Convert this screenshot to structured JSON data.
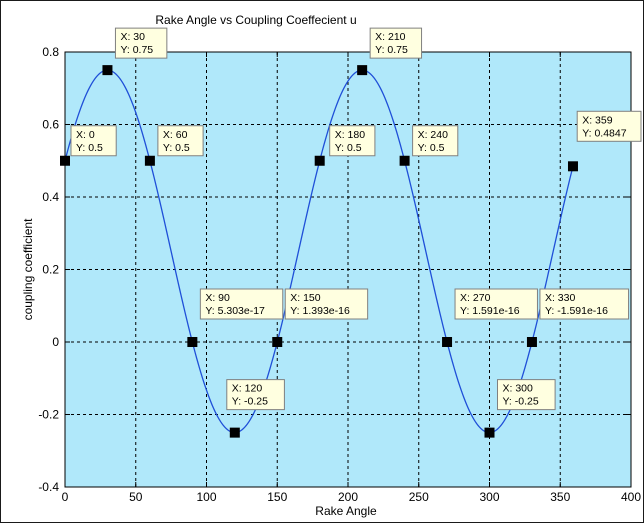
{
  "chart_data": {
    "type": "line",
    "title": "Rake Angle vs Coupling Coeffecient u",
    "xlabel": "Rake Angle",
    "ylabel": "coupling coefficient",
    "xlim": [
      0,
      400
    ],
    "ylim": [
      -0.4,
      0.8
    ],
    "xticks": [
      0,
      50,
      100,
      150,
      200,
      250,
      300,
      350,
      400
    ],
    "yticks": [
      -0.4,
      -0.2,
      0,
      0.2,
      0.4,
      0.6,
      0.8
    ],
    "xtick_labels": [
      "0",
      "50",
      "100",
      "150",
      "200",
      "250",
      "300",
      "350",
      "400"
    ],
    "ytick_labels": [
      "-0.4",
      "-0.2",
      "0",
      "0.2",
      "0.4",
      "0.6",
      "0.8"
    ],
    "grid": true,
    "legend": "none",
    "plot_background": "#b0e8fa",
    "line_color": "#1f4fd8",
    "curve": {
      "x_start": 0,
      "x_end": 359,
      "function": "0.25 + 0.5*cos(2*(x-30) degrees)"
    },
    "datatips": [
      {
        "x_text": "X: 0",
        "y_text": "Y: 0.5",
        "x": 0,
        "y": 0.5
      },
      {
        "x_text": "X: 30",
        "y_text": "Y: 0.75",
        "x": 30,
        "y": 0.75
      },
      {
        "x_text": "X: 60",
        "y_text": "Y: 0.5",
        "x": 60,
        "y": 0.5
      },
      {
        "x_text": "X: 90",
        "y_text": "Y: 5.303e-17",
        "x": 90,
        "y": 0
      },
      {
        "x_text": "X: 120",
        "y_text": "Y: -0.25",
        "x": 120,
        "y": -0.25
      },
      {
        "x_text": "X: 150",
        "y_text": "Y: 1.393e-16",
        "x": 150,
        "y": 0
      },
      {
        "x_text": "X: 180",
        "y_text": "Y: 0.5",
        "x": 180,
        "y": 0.5
      },
      {
        "x_text": "X: 210",
        "y_text": "Y: 0.75",
        "x": 210,
        "y": 0.75
      },
      {
        "x_text": "X: 240",
        "y_text": "Y: 0.5",
        "x": 240,
        "y": 0.5
      },
      {
        "x_text": "X: 270",
        "y_text": "Y: 1.591e-16",
        "x": 270,
        "y": 0
      },
      {
        "x_text": "X: 300",
        "y_text": "Y: -0.25",
        "x": 300,
        "y": -0.25
      },
      {
        "x_text": "X: 330",
        "y_text": "Y: -1.591e-16",
        "x": 330,
        "y": 0
      },
      {
        "x_text": "X: 359",
        "y_text": "Y: 0.4847",
        "x": 359,
        "y": 0.4847
      }
    ]
  }
}
